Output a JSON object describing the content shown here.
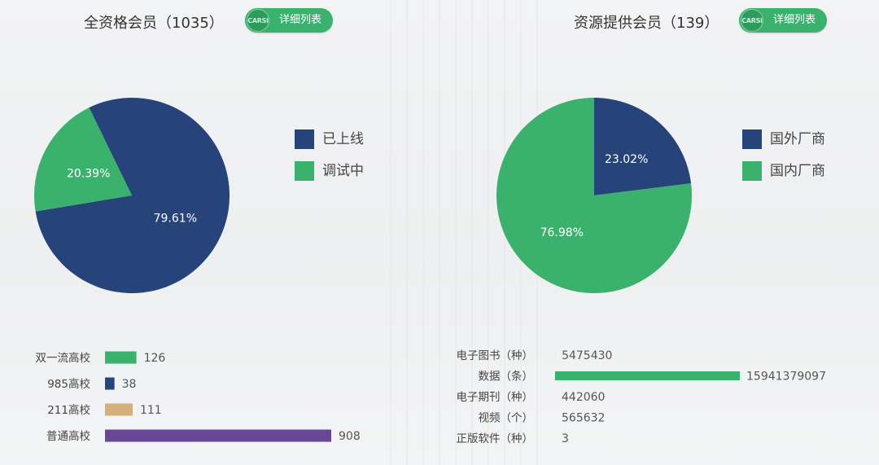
{
  "left_panel": {
    "title": "全资格会员（1035）",
    "detail_button": "详细列表",
    "logo_text": "CARSI"
  },
  "right_panel": {
    "title": "资源提供会员（139）",
    "detail_button": "详细列表",
    "logo_text": "CARSI"
  },
  "colors": {
    "navy": "#26447a",
    "green": "#3ab16d",
    "tan": "#d4b07a",
    "purple": "#6a4696"
  },
  "chart_data": [
    {
      "type": "pie",
      "slices": [
        {
          "label": "已上线",
          "value": 79.61,
          "display": "79.61%",
          "color": "#26447a"
        },
        {
          "label": "调试中",
          "value": 20.39,
          "display": "20.39%",
          "color": "#3ab16d"
        }
      ],
      "legend_placement": "right"
    },
    {
      "type": "pie",
      "slices": [
        {
          "label": "国外厂商",
          "value": 23.02,
          "display": "23.02%",
          "color": "#26447a"
        },
        {
          "label": "国内厂商",
          "value": 76.98,
          "display": "76.98%",
          "color": "#3ab16d"
        }
      ],
      "legend_placement": "right"
    },
    {
      "type": "bar",
      "orientation": "horizontal",
      "categories": [
        "双一流高校",
        "985高校",
        "211高校",
        "普通高校"
      ],
      "values": [
        126,
        38,
        111,
        908
      ],
      "colors": [
        "#3ab16d",
        "#26447a",
        "#d4b07a",
        "#6a4696"
      ]
    },
    {
      "type": "bar",
      "orientation": "horizontal",
      "categories": [
        "电子图书（种）",
        "数据（条）",
        "电子期刊（种）",
        "视频（个）",
        "正版软件（种）"
      ],
      "values": [
        5475430,
        15941379097,
        442060,
        565632,
        3
      ],
      "colors": [
        "#3ab16d",
        "#3ab16d",
        "#3ab16d",
        "#3ab16d",
        "#3ab16d"
      ]
    }
  ]
}
